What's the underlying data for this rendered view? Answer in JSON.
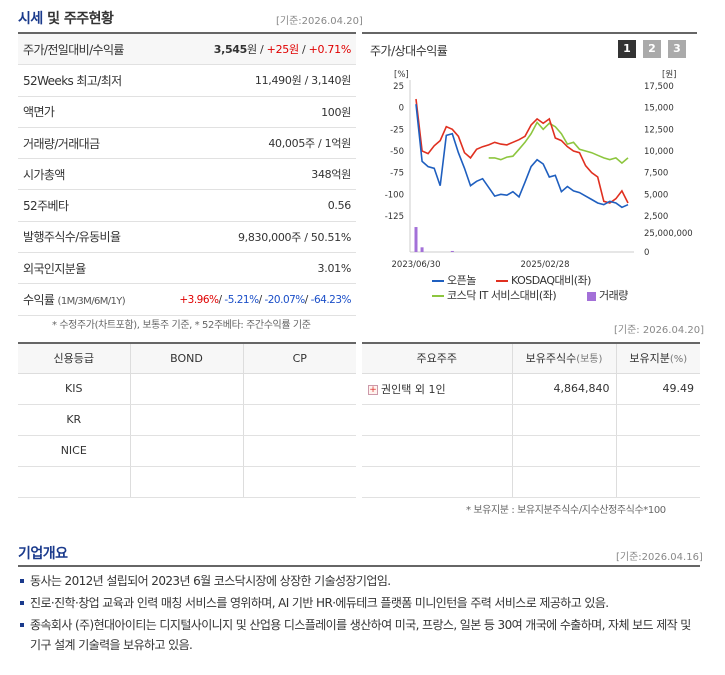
{
  "section1": {
    "title_main": "시세",
    "title_sub": "및 주주현황",
    "basis": "[기준:2026.04.20]"
  },
  "price_table": [
    {
      "label": "주가/전일대비/수익률",
      "v1": "3,545",
      "u1": "원",
      "sep1": " / ",
      "v2": "+25",
      "u2": "원",
      "sep2": " / ",
      "v3": "+0.71%"
    },
    {
      "label": "52Weeks 최고/최저",
      "value": "11,490원 / 3,140원"
    },
    {
      "label": "액면가",
      "value": "100원"
    },
    {
      "label": "거래량/거래대금",
      "value": "40,005주 / 1억원"
    },
    {
      "label": "시가총액",
      "value": "348억원"
    },
    {
      "label": "52주베타",
      "value": "0.56"
    },
    {
      "label": "발행주식수/유동비율",
      "value": "9,830,000주 / 50.51%"
    },
    {
      "label": "외국인지분율",
      "value": "3.01%"
    },
    {
      "label": "수익률",
      "label_sub": "(1M/3M/6M/1Y)",
      "r1": "+3.96%",
      "r2": "-5.21%",
      "r3": "-20.07%",
      "r4": "-64.23%",
      "sep": "/ "
    }
  ],
  "price_note": "* 수정주가(차트포함), 보통주 기준, * 52주베타: 주간수익률 기준",
  "chart_panel": {
    "title": "주가/상대수익률",
    "tabs": [
      "1",
      "2",
      "3"
    ],
    "tab_colors": [
      "#333333",
      "#aaaaaa",
      "#aaaaaa"
    ]
  },
  "chart_data": {
    "type": "line",
    "left_unit": "[%]",
    "right_unit": "[원]",
    "left_ticks": [
      "25",
      "0",
      "-25",
      "-50",
      "-75",
      "-100",
      "-125"
    ],
    "right_ticks": [
      "17,500",
      "15,000",
      "12,500",
      "10,000",
      "7,500",
      "5,000",
      "2,500"
    ],
    "volume_ticks": [
      "25,000,000",
      "0"
    ],
    "x_ticks": [
      "2023/06/30",
      "2025/02/28"
    ],
    "ylim_left": [
      -125,
      25
    ],
    "series": [
      {
        "name": "오픈놀",
        "color": "#1f5fbf",
        "values": [
          4,
          -62,
          -68,
          -70,
          -90,
          -32,
          -30,
          -52,
          -70,
          -90,
          -85,
          -82,
          -92,
          -102,
          -100,
          -101,
          -97,
          -103,
          -86,
          -68,
          -60,
          -65,
          -80,
          -78,
          -97,
          -91,
          -96,
          -98,
          -102,
          -106,
          -110,
          -112,
          -108,
          -110,
          -115,
          -112
        ]
      },
      {
        "name": "KOSDAQ대비(좌)",
        "color": "#e03020",
        "values": [
          10,
          -50,
          -53,
          -44,
          -38,
          -22,
          -25,
          -33,
          -52,
          -58,
          -48,
          -45,
          -43,
          -40,
          -42,
          -43,
          -40,
          -37,
          -33,
          -20,
          -13,
          -18,
          -13,
          -35,
          -38,
          -45,
          -50,
          -52,
          -67,
          -75,
          -80,
          -108,
          -110,
          -105,
          -96,
          -110
        ]
      },
      {
        "name": "코스닥 IT 서비스대비(좌)",
        "color": "#8dc63f",
        "values": [
          null,
          null,
          null,
          null,
          null,
          null,
          null,
          null,
          null,
          null,
          null,
          null,
          -58,
          -58,
          -60,
          -57,
          -56,
          -48,
          -40,
          -30,
          -17,
          -25,
          -18,
          -22,
          -30,
          -42,
          -40,
          -48,
          -50,
          -52,
          -55,
          -58,
          -60,
          -58,
          -64,
          -58
        ]
      },
      {
        "name": "거래량",
        "color": "#a370d8"
      }
    ],
    "volume": [
      24000000,
      4500000,
      0,
      0,
      0,
      0,
      1000000,
      0,
      0,
      0,
      0,
      0,
      0,
      0,
      0,
      0,
      0,
      0,
      0,
      0,
      0,
      0,
      0,
      0,
      0,
      0,
      0,
      0,
      0,
      0,
      0,
      0,
      0,
      0,
      0,
      0
    ]
  },
  "chart_basis": "[기준: 2026.04.20]",
  "credit_table": {
    "headers": [
      "신용등급",
      "BOND",
      "CP"
    ],
    "rows": [
      [
        "KIS",
        "",
        ""
      ],
      [
        "KR",
        "",
        ""
      ],
      [
        "NICE",
        "",
        ""
      ],
      [
        "",
        "",
        ""
      ]
    ]
  },
  "shareholder_table": {
    "headers": [
      "주요주주",
      "보유주식수",
      "(보통)",
      "보유지분",
      "(%)"
    ],
    "rows": [
      {
        "name": "권인택 외 1인",
        "shares": "4,864,840",
        "ratio": "49.49"
      },
      {
        "name": "",
        "shares": "",
        "ratio": ""
      },
      {
        "name": "",
        "shares": "",
        "ratio": ""
      },
      {
        "name": "",
        "shares": "",
        "ratio": ""
      }
    ],
    "note": "* 보유지분 : 보유지분주식수/지수산정주식수*100"
  },
  "section2": {
    "title": "기업개요",
    "basis": "[기준:2026.04.16]"
  },
  "overview": [
    "동사는 2012년 설립되어 2023년 6월 코스닥시장에 상장한 기술성장기업임.",
    "진로·진학·창업 교육과 인력 매칭 서비스를 영위하며, AI 기반 HR·에듀테크 플랫폼 미니인턴을 주력 서비스로 제공하고 있음.",
    "종속회사 (주)현대아이티는 디지털사이니지 및 산업용 디스플레이를 생산하여 미국, 프랑스, 일본 등 30여 개국에 수출하며, 자체 보드 제작 및 기구 설계 기술력을 보유하고 있음."
  ]
}
